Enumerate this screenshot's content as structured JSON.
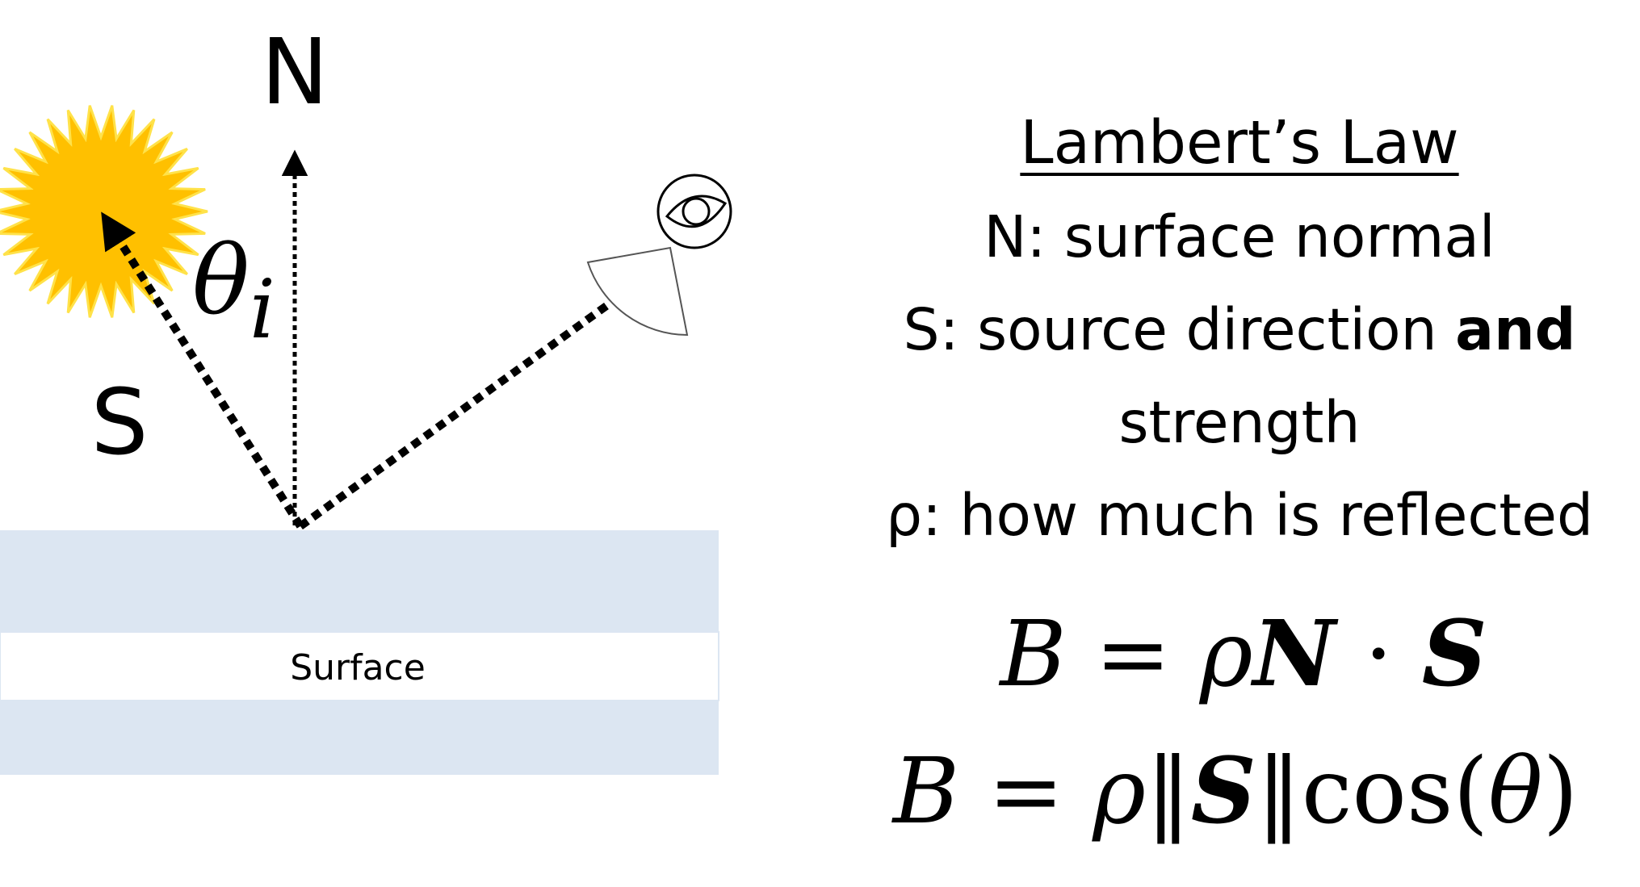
{
  "diagram": {
    "normal_label": "N",
    "source_label": "S",
    "angle_symbol": "θ",
    "angle_subscript": "i",
    "surface_label": "Surface"
  },
  "text_panel": {
    "title": "Lambert’s Law",
    "line_n": "N: surface normal",
    "line_s_regular": "S: source direction ",
    "line_s_bold": "and",
    "line_s_cont": "strength",
    "line_rho": "ρ: how much is reflected"
  },
  "equations": {
    "eq1": {
      "lhs": "B",
      "eq": " = ",
      "rho": "ρ",
      "n": "N",
      "dot": " · ",
      "s": "S"
    },
    "eq2": {
      "lhs": "B",
      "eq": " = ",
      "rho": "ρ",
      "norm_open": "‖",
      "s": "S",
      "norm_close": "‖",
      "cos": "cos(",
      "theta": "θ",
      "close": ")"
    }
  },
  "colors": {
    "sun_fill": "#FFC000",
    "sun_glow": "#FFE24A",
    "surface_band": "#DCE6F2",
    "surface_label_bg": "#FFFFFF",
    "arrows": "#000000"
  },
  "icons": {
    "sun": "sun-icon",
    "eye": "eye-icon",
    "viewing_cone": "viewing-cone-icon"
  }
}
